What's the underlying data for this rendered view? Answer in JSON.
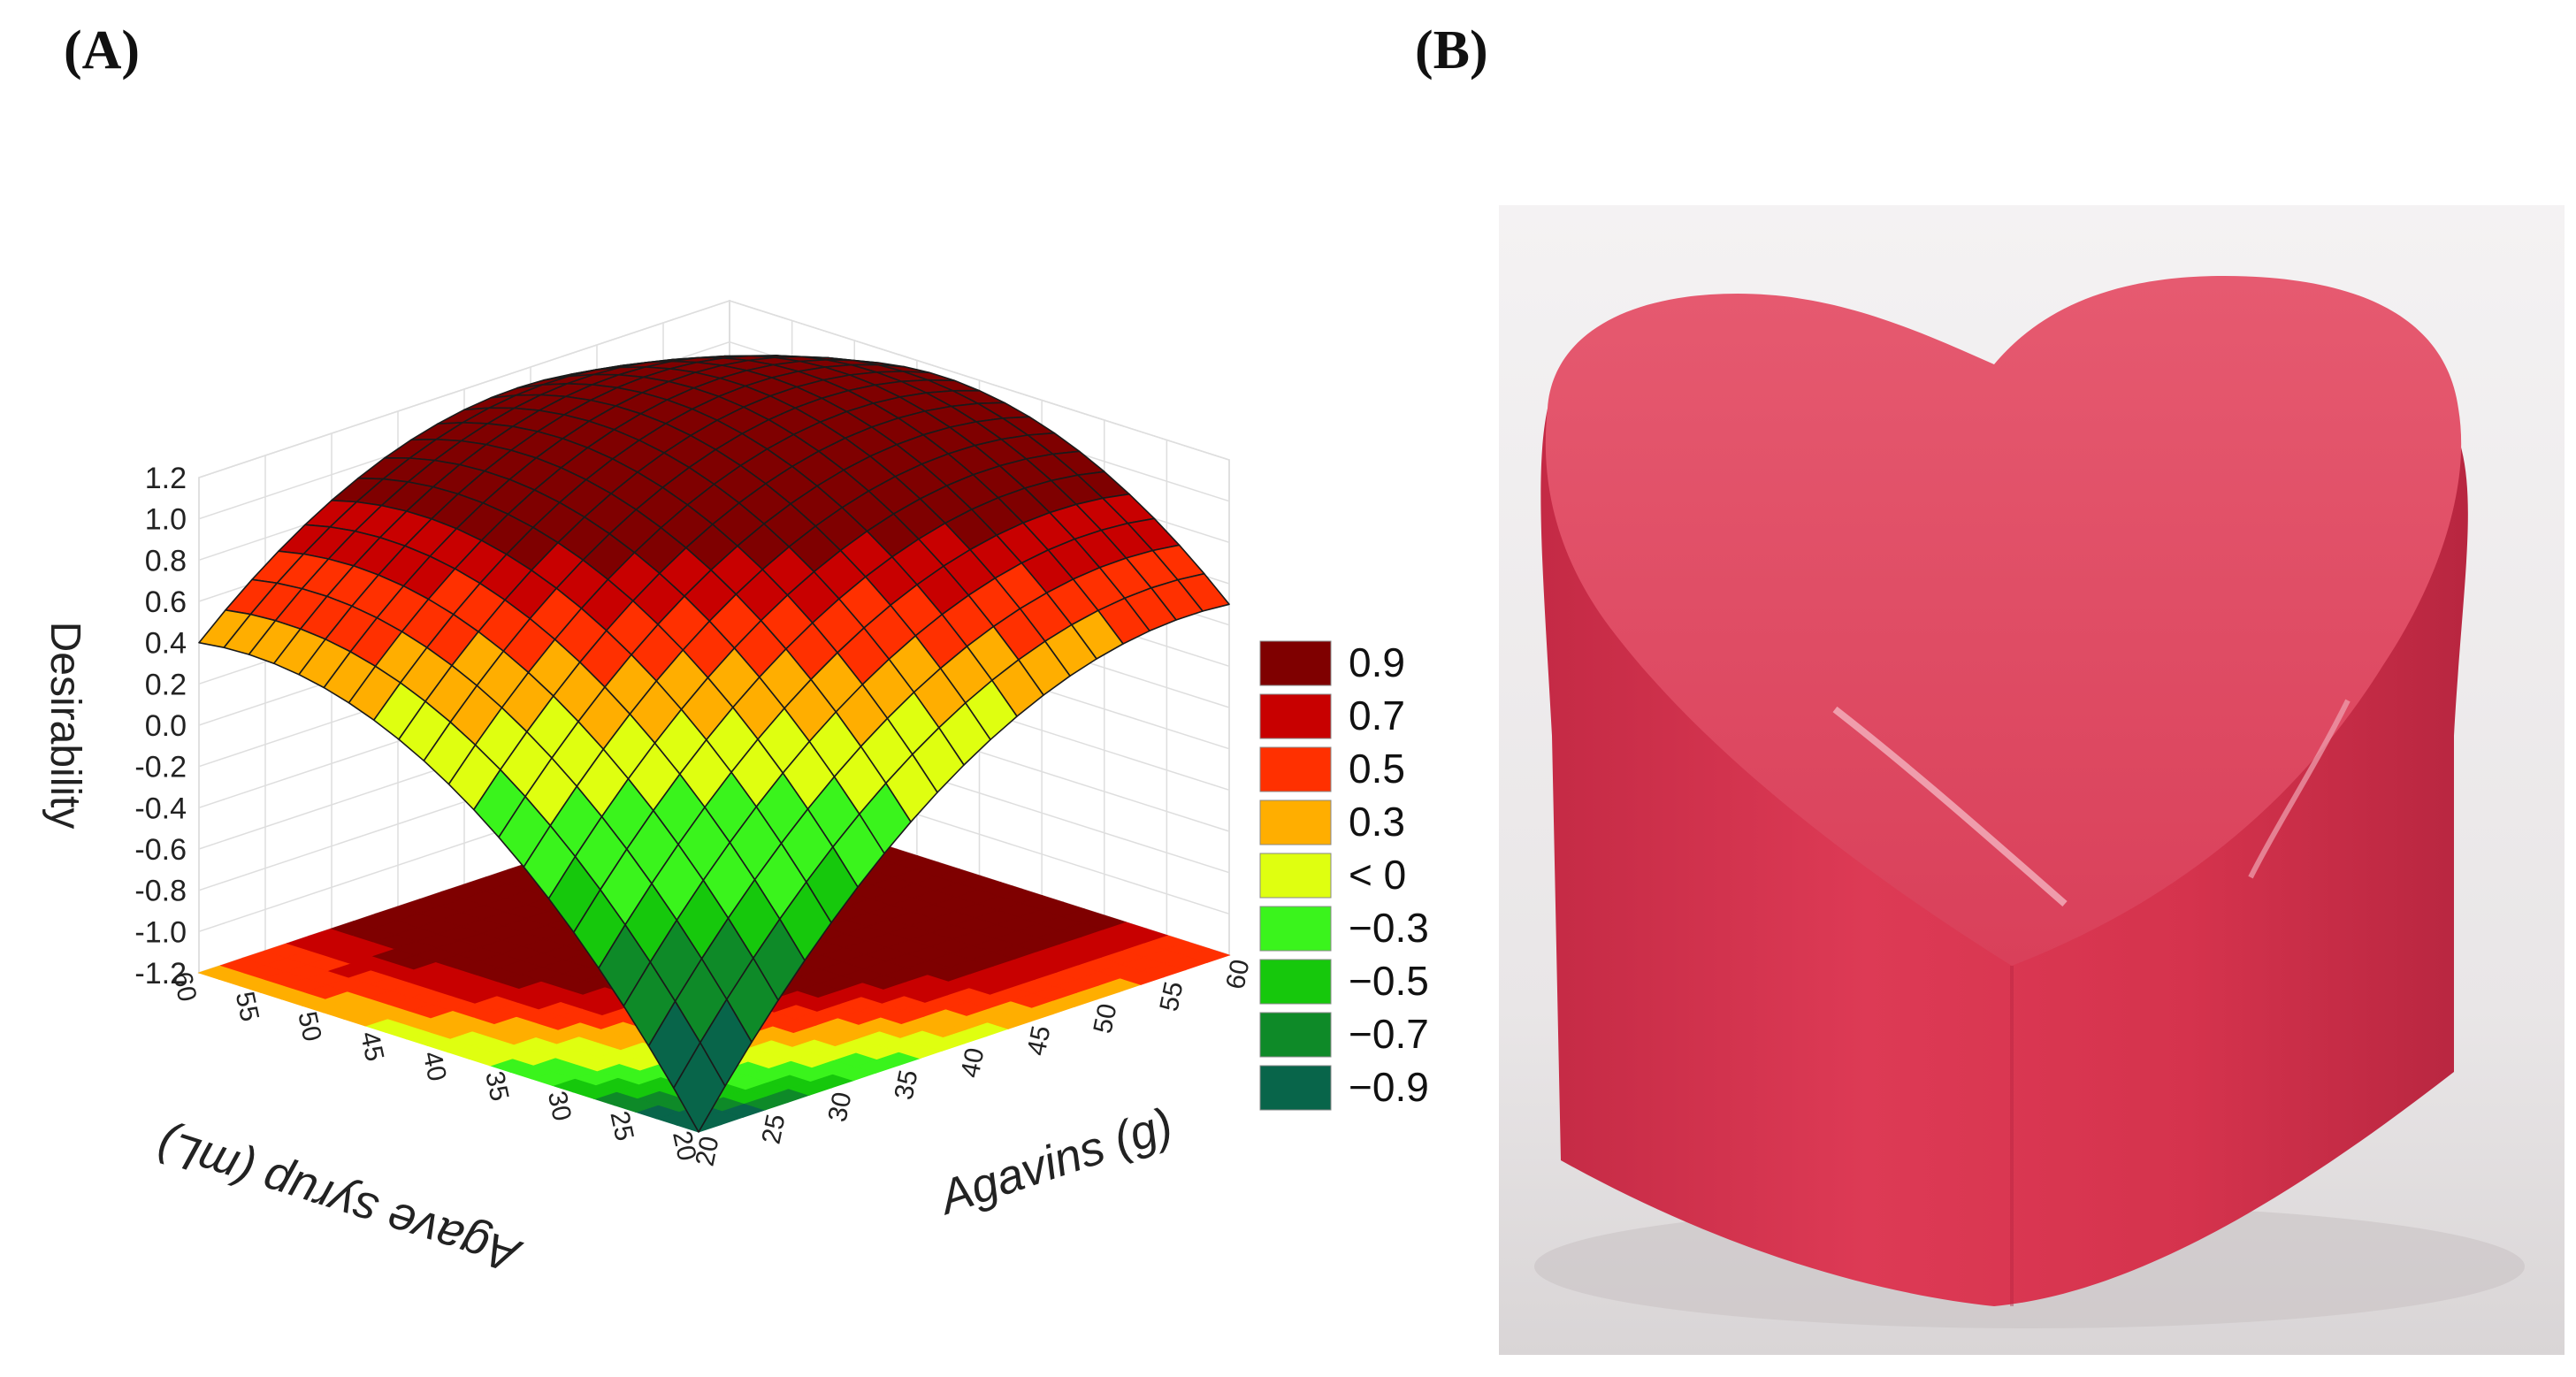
{
  "panels": {
    "a_label": "(A)",
    "b_label": "(B)"
  },
  "chart_data": {
    "type": "surface3d",
    "title": "",
    "zlabel": "Desirability",
    "xlabel": "Agave syrup (mL)",
    "ylabel": "Agavins (g)",
    "x_ticks": [
      "20",
      "25",
      "30",
      "35",
      "40",
      "45",
      "50",
      "55",
      "60"
    ],
    "y_ticks": [
      "20",
      "25",
      "30",
      "35",
      "40",
      "45",
      "50",
      "55",
      "60"
    ],
    "z_ticks": [
      "-1.2",
      "-1.0",
      "-0.8",
      "-0.6",
      "-0.4",
      "-0.2",
      "0.0",
      "0.2",
      "0.4",
      "0.6",
      "0.8",
      "1.0",
      "1.2"
    ],
    "xlim": [
      20,
      60
    ],
    "ylim": [
      20,
      60
    ],
    "zlim": [
      -1.2,
      1.2
    ],
    "surface_points": [
      {
        "x": 20,
        "y": 20,
        "z": -1.2
      },
      {
        "x": 60,
        "y": 20,
        "z": 0.42
      },
      {
        "x": 20,
        "y": 60,
        "z": 0.52
      },
      {
        "x": 60,
        "y": 60,
        "z": 0.98
      },
      {
        "x": 45,
        "y": 45,
        "z": 1.0
      }
    ],
    "legend": [
      {
        "label": "0.9",
        "color": "#7f0000"
      },
      {
        "label": "0.7",
        "color": "#c80000"
      },
      {
        "label": "0.5",
        "color": "#ff3000"
      },
      {
        "label": "0.3",
        "color": "#ffae00"
      },
      {
        "label": "< 0",
        "color": "#dfff10"
      },
      {
        "label": "−0.3",
        "color": "#3af41c"
      },
      {
        "label": "−0.5",
        "color": "#16c80c"
      },
      {
        "label": "−0.7",
        "color": "#0e8a28"
      },
      {
        "label": "−0.9",
        "color": "#08654a"
      }
    ]
  },
  "photo": {
    "subject_icon": "heart-gummy-icon",
    "colors": {
      "body": "#d7334e",
      "top": "#e14d63",
      "background": "#ece9ea"
    }
  }
}
